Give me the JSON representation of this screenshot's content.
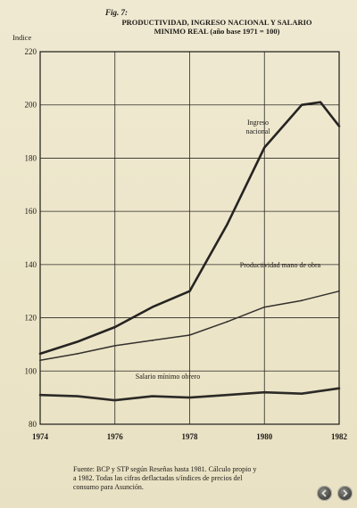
{
  "figure": {
    "number": "Fig. 7:",
    "title_line1": "PRODUCTIVIDAD, INGRESO NACIONAL Y SALARIO",
    "title_line2": "MINIMO REAL (año base 1971 = 100)"
  },
  "source": {
    "line1": "Fuente: BCP y STP según Reseñas hasta 1981. Cálculo propio y",
    "line2": "a 1982. Todas las cifras deflactadas s/índices de precios del",
    "line3": "consumo para Asunción."
  },
  "nav": {
    "prev_icon": "chevron-left-icon",
    "next_icon": "chevron-right-icon"
  },
  "chart_data": {
    "type": "line",
    "ylabel": "Indice",
    "xlim": [
      1974,
      1982
    ],
    "ylim": [
      80,
      220
    ],
    "x_ticks": [
      "1974",
      "1976",
      "1978",
      "1980",
      "1982"
    ],
    "y_ticks": [
      "80",
      "100",
      "120",
      "140",
      "160",
      "180",
      "200",
      "220"
    ],
    "grid": true,
    "series": [
      {
        "name": "Ingreso nacional",
        "label_lines": [
          "Ingreso",
          "nacional"
        ],
        "color": "#262422",
        "width": 2.6,
        "x": [
          1974,
          1975,
          1976,
          1977,
          1978,
          1979,
          1980,
          1981,
          1981.5,
          1982
        ],
        "y": [
          106.5,
          111,
          116.5,
          124,
          130,
          155,
          184,
          200,
          201,
          192
        ]
      },
      {
        "name": "Productividad mano de obra",
        "label_lines": [
          "Productividad mano de obra"
        ],
        "color": "#34312d",
        "width": 1.5,
        "x": [
          1974,
          1975,
          1976,
          1977,
          1978,
          1979,
          1980,
          1981,
          1982
        ],
        "y": [
          104,
          106.5,
          109.5,
          111.5,
          113.5,
          118.5,
          124,
          126.5,
          130
        ]
      },
      {
        "name": "Salario mínimo obrero",
        "label_lines": [
          "Salario mínimo obrero"
        ],
        "color": "#2c2a27",
        "width": 2.6,
        "x": [
          1974,
          1975,
          1976,
          1977,
          1978,
          1979,
          1980,
          1981,
          1982
        ],
        "y": [
          91,
          90.5,
          89,
          90.5,
          90,
          91,
          92,
          91.5,
          93.5
        ]
      }
    ]
  }
}
